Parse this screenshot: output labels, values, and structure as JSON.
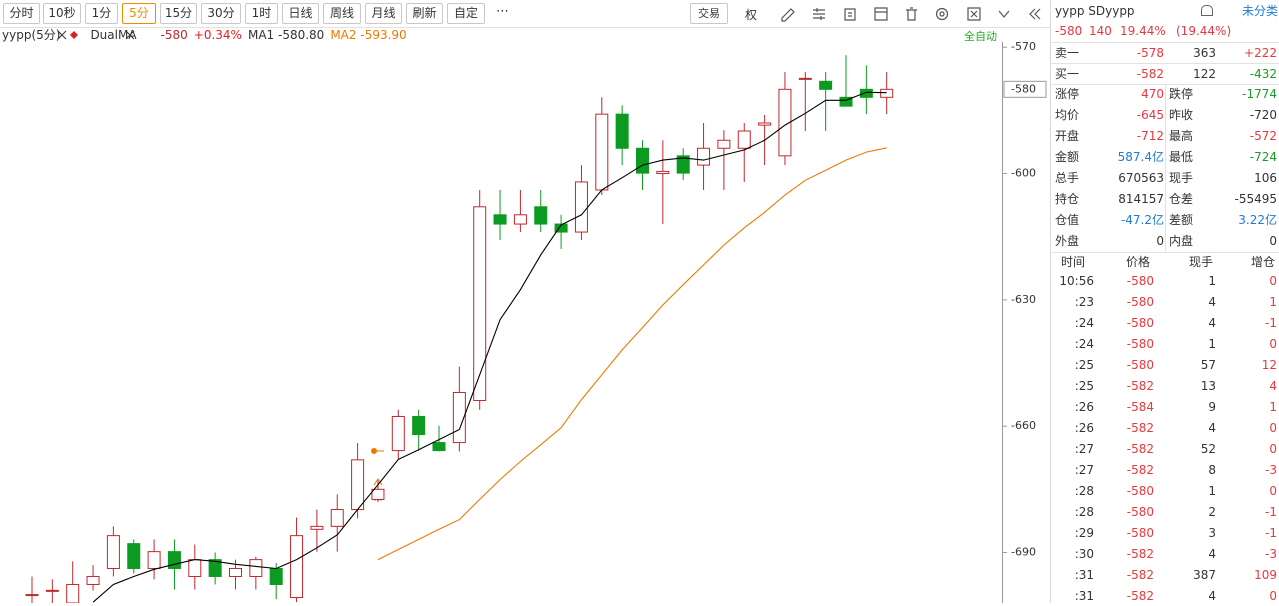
{
  "toolbar": {
    "periods": [
      "分时",
      "10秒",
      "1分",
      "5分",
      "15分",
      "30分",
      "1时",
      "日线",
      "周线",
      "月线",
      "刷新",
      "自定"
    ],
    "active_index": 3,
    "more": "⋯",
    "trade": "交易",
    "rights": "权"
  },
  "chart_data": {
    "type": "candlestick",
    "title": "yypp(5分)",
    "indicator": "DualMA",
    "last": "-580",
    "change": "+0.34%",
    "mode": "全自动",
    "up_color": "#c0282d",
    "down_color": "#0c9a20",
    "open": [
      -700,
      -699,
      -702,
      -697.6,
      -693.8,
      -687.9,
      -693.8,
      -689.8,
      -695.7,
      -691.7,
      -695.7,
      -695.7,
      -693.8,
      -700.7,
      -684.5,
      -683.8,
      -679.8,
      -677.4,
      -665.8,
      -657.7,
      -663.9,
      -663.9,
      -653.9,
      -609.8,
      -612,
      -607.9,
      -612,
      -613.9,
      -603.9,
      -585.9,
      -594,
      -600,
      -595.8,
      -598,
      -594,
      -594,
      -588.5,
      -595.8,
      -577.6,
      -578.1,
      -581.9,
      -580,
      -581.9
    ],
    "high": [
      -695.7,
      -696.4,
      -692.1,
      -693,
      -683.8,
      -686.9,
      -686.9,
      -686.9,
      -688.1,
      -690,
      -691.7,
      -691,
      -692.5,
      -681.7,
      -679.8,
      -676.2,
      -664,
      -673,
      -656.1,
      -656.1,
      -659.9,
      -645.9,
      -603.9,
      -603.9,
      -603.9,
      -603.9,
      -609.8,
      -598,
      -581.9,
      -583.8,
      -592.1,
      -592.1,
      -594,
      -588,
      -589.7,
      -588,
      -586.1,
      -575.9,
      -575.9,
      -575.9,
      -571.9,
      -574.3,
      -575.9
    ],
    "low": [
      -705,
      -705,
      -705,
      -699,
      -695.7,
      -695,
      -696.4,
      -698.8,
      -698.8,
      -697.6,
      -698.8,
      -698.8,
      -701.1,
      -701.8,
      -689.8,
      -689.8,
      -681.9,
      -678,
      -667.9,
      -665.8,
      -666,
      -666,
      -656.1,
      -615.8,
      -613.9,
      -613.9,
      -617.9,
      -615.8,
      -605.1,
      -598,
      -603.9,
      -612,
      -601.5,
      -603.9,
      -603.9,
      -602,
      -598,
      -598,
      -589.9,
      -589.9,
      -584,
      -585.9,
      -585.9
    ],
    "close": [
      -700,
      -699,
      -697.6,
      -695.7,
      -686,
      -693.8,
      -689.8,
      -693.8,
      -691.7,
      -695.7,
      -693.8,
      -691.7,
      -697.6,
      -686,
      -683.8,
      -679.8,
      -668,
      -675,
      -657.7,
      -662,
      -665.8,
      -652,
      -607.9,
      -612,
      -609.8,
      -612,
      -613.9,
      -602,
      -585.9,
      -594,
      -599.9,
      -599.5,
      -599.9,
      -594,
      -592.1,
      -589.9,
      -588,
      -580,
      -577.4,
      -580,
      -584,
      -581.9,
      -580
    ],
    "series": [
      {
        "name": "MA1",
        "last": "-580.80",
        "color": "#000000",
        "values": [
          null,
          null,
          null,
          -701.8,
          -697.6,
          -695.7,
          -694.0,
          -692.8,
          -691.7,
          -692.1,
          -692.8,
          -693.3,
          -693.8,
          -691.7,
          -688.9,
          -685.8,
          -679.8,
          -673.9,
          -667.9,
          -665.6,
          -663.2,
          -660.8,
          -647.8,
          -634.7,
          -627.6,
          -619.3,
          -612.2,
          -609.8,
          -603.9,
          -601.0,
          -598.0,
          -596.8,
          -596.3,
          -596.8,
          -595.6,
          -594.4,
          -592.1,
          -588.5,
          -585.7,
          -582.6,
          -582.6,
          -580.7,
          -580.8
        ]
      },
      {
        "name": "MA2",
        "last": "-593.90",
        "color": "#f07800",
        "values": [
          null,
          null,
          null,
          null,
          null,
          null,
          null,
          null,
          null,
          null,
          null,
          null,
          null,
          null,
          null,
          null,
          null,
          -691.7,
          -689.3,
          -686.9,
          -684.5,
          -682.2,
          -677.4,
          -672.7,
          -668.4,
          -664.4,
          -660.4,
          -653.7,
          -647.8,
          -641.9,
          -636.6,
          -631.2,
          -626.4,
          -621.7,
          -617.0,
          -612.9,
          -609.2,
          -605.1,
          -601.6,
          -599.2,
          -596.8,
          -594.9,
          -593.9
        ]
      }
    ],
    "ylim": [
      -702,
      -569
    ],
    "yticks": [
      -570,
      -600,
      -630,
      -660,
      -690
    ],
    "price_label": -580
  },
  "quote": {
    "title": "yypp SDyypp",
    "category": "未分类",
    "summary": [
      "-580",
      "140",
      "19.44%",
      "(19.44%)"
    ],
    "book": [
      [
        "卖一",
        "-578",
        "363",
        "+222"
      ],
      [
        "买一",
        "-582",
        "122",
        "-432"
      ]
    ],
    "stats": [
      [
        "涨停",
        "470",
        "跌停",
        "-1774"
      ],
      [
        "均价",
        "-645",
        "昨收",
        "-720"
      ],
      [
        "开盘",
        "-712",
        "最高",
        "-572"
      ],
      [
        "金额",
        "587.4亿",
        "最低",
        "-724"
      ],
      [
        "总手",
        "670563",
        "现手",
        "106"
      ],
      [
        "持仓",
        "814157",
        "仓差",
        "-55495"
      ],
      [
        "仓值",
        "-47.2亿",
        "差额",
        "3.22亿"
      ],
      [
        "外盘",
        "0",
        "内盘",
        "0"
      ]
    ],
    "ticks": {
      "header": [
        "时间",
        "价格",
        "现手",
        "增仓"
      ],
      "rows": [
        [
          "10:56",
          "-580",
          "1",
          "0"
        ],
        [
          ":23",
          "-580",
          "4",
          "1"
        ],
        [
          ":24",
          "-580",
          "4",
          "-1"
        ],
        [
          ":24",
          "-580",
          "1",
          "0"
        ],
        [
          ":25",
          "-580",
          "57",
          "12"
        ],
        [
          ":25",
          "-582",
          "13",
          "4"
        ],
        [
          ":26",
          "-584",
          "9",
          "1"
        ],
        [
          ":26",
          "-582",
          "4",
          "0"
        ],
        [
          ":27",
          "-582",
          "52",
          "0"
        ],
        [
          ":27",
          "-582",
          "8",
          "-3"
        ],
        [
          ":28",
          "-580",
          "1",
          "0"
        ],
        [
          ":28",
          "-580",
          "2",
          "-1"
        ],
        [
          ":29",
          "-580",
          "3",
          "-1"
        ],
        [
          ":30",
          "-582",
          "4",
          "-3"
        ],
        [
          ":31",
          "-582",
          "387",
          "109"
        ],
        [
          ":31",
          "-582",
          "4",
          "0"
        ]
      ]
    }
  }
}
